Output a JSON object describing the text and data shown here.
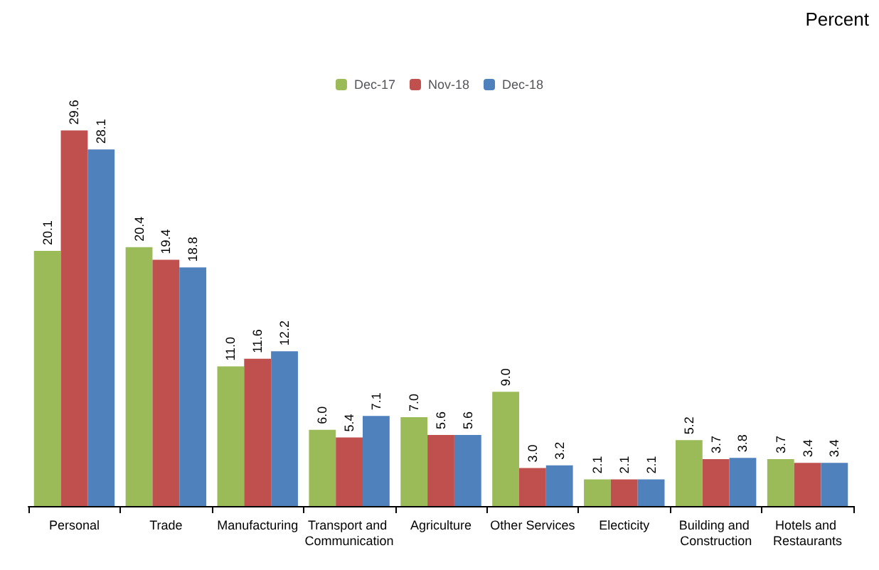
{
  "chart_data": {
    "type": "bar",
    "annotations": [
      "Percent"
    ],
    "categories": [
      "Personal",
      "Trade",
      "Manufacturing",
      "Transport and Communication",
      "Agriculture",
      "Other Services",
      "Electicity",
      "Building and Construction",
      "Hotels and Restaurants"
    ],
    "series": [
      {
        "name": "Dec-17",
        "color": "#9bbb59",
        "values": [
          20.1,
          20.4,
          11.0,
          6.0,
          7.0,
          9.0,
          2.1,
          5.2,
          3.7
        ],
        "value_labels": [
          "20.1",
          "20.4",
          "11.0",
          "6.0",
          "7.0",
          "9.0",
          "2.1",
          "5.2",
          "3.7"
        ]
      },
      {
        "name": "Nov-18",
        "color": "#c0504d",
        "values": [
          29.6,
          19.4,
          11.6,
          5.4,
          5.6,
          3.0,
          2.1,
          3.7,
          3.4
        ],
        "value_labels": [
          "29.6",
          "19.4",
          "11.6",
          "5.4",
          "5.6",
          "3.0",
          "2.1",
          "3.7",
          "3.4"
        ]
      },
      {
        "name": "Dec-18",
        "color": "#4f81bd",
        "values": [
          28.1,
          18.8,
          12.2,
          7.1,
          5.6,
          3.2,
          2.1,
          3.8,
          3.4
        ],
        "value_labels": [
          "28.1",
          "18.8",
          "12.2",
          "7.1",
          "5.6",
          "3.2",
          "2.1",
          "3.8",
          "3.4"
        ]
      }
    ],
    "legend": "top",
    "grid": false
  }
}
